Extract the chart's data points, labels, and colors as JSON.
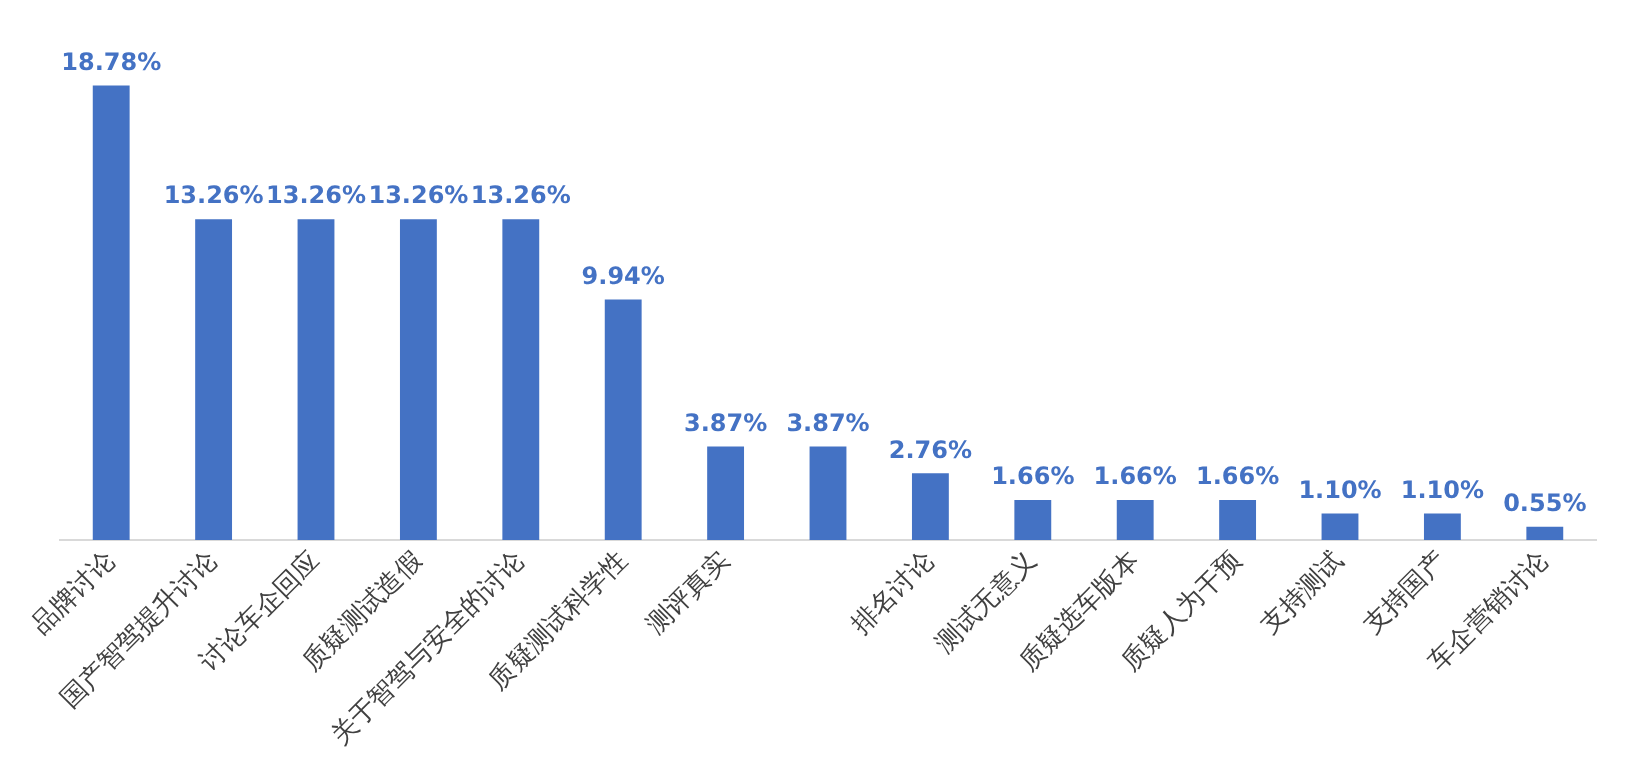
{
  "chart_data": {
    "type": "bar",
    "categories": [
      "品牌讨论",
      "国产智驾提升讨论",
      "讨论车企回应",
      "质疑测试造假",
      "关于智驾与安全的讨论",
      "质疑测试科学性",
      "测评真实",
      null,
      "排名讨论",
      "测试无意义",
      "质疑选车版本",
      "质疑人为干预",
      "支持测试",
      "支持国产",
      "车企营销讨论"
    ],
    "values": [
      18.78,
      13.26,
      13.26,
      13.26,
      13.26,
      9.94,
      3.87,
      3.87,
      2.76,
      1.66,
      1.66,
      1.66,
      1.1,
      1.1,
      0.55
    ],
    "value_labels": [
      "18.78%",
      "13.26%",
      "13.26%",
      "13.26%",
      "13.26%",
      "9.94%",
      "3.87%",
      "3.87%",
      "2.76%",
      "1.66%",
      "1.66%",
      "1.66%",
      "1.10%",
      "1.10%",
      "0.55%"
    ],
    "color": "#4472c4",
    "grid": false,
    "legend": false
  }
}
